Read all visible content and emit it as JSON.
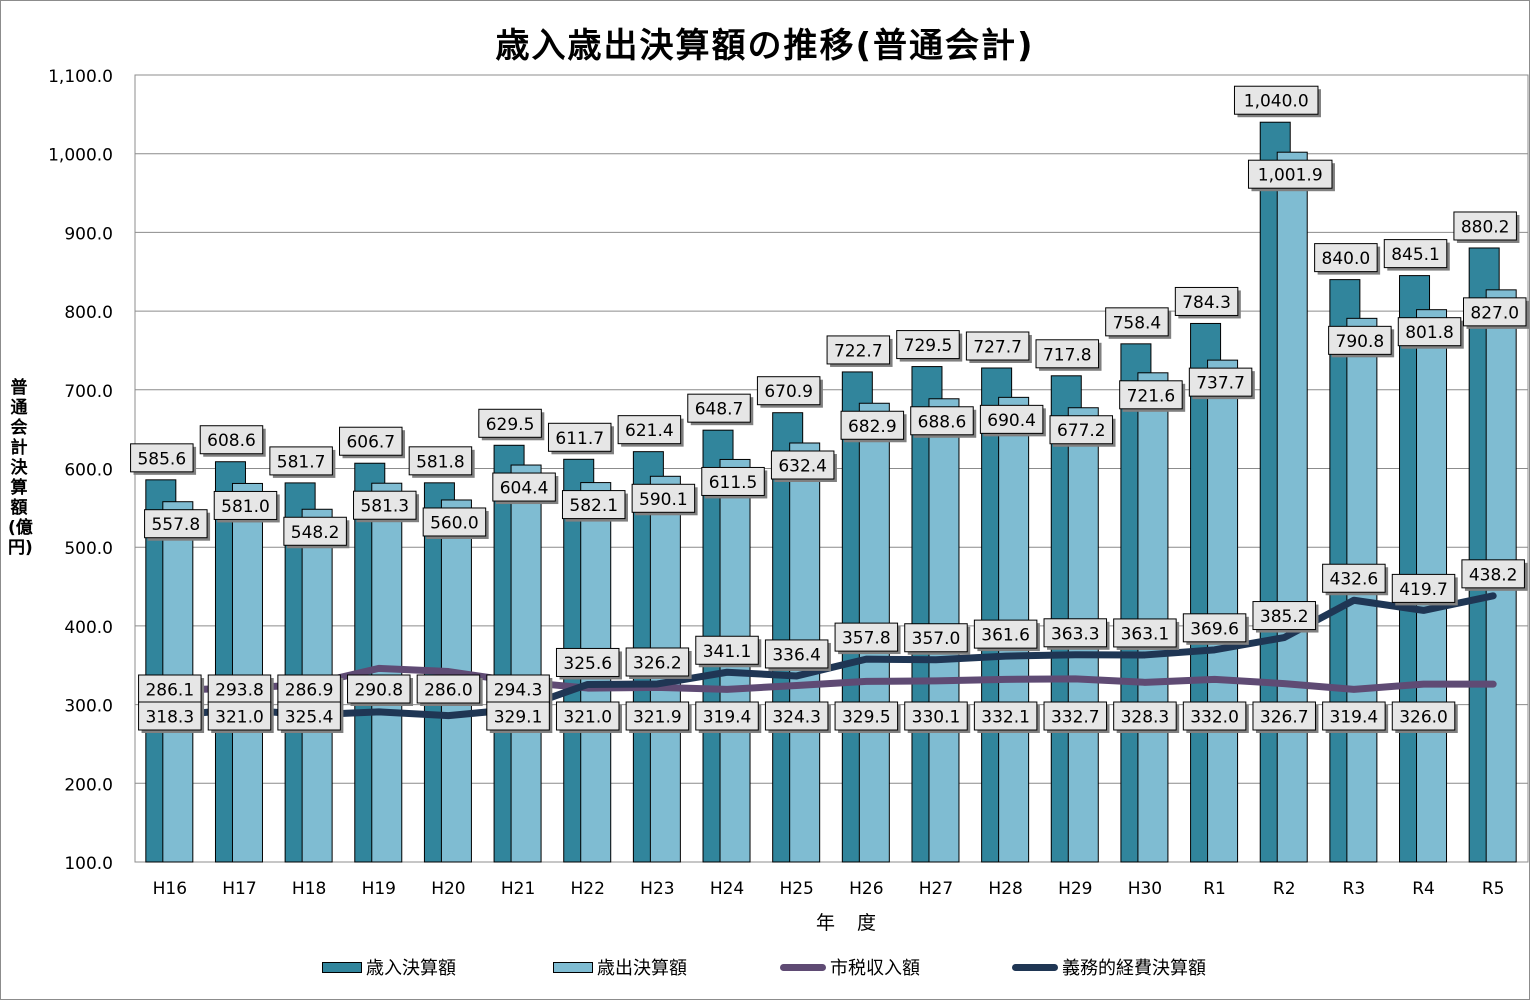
{
  "chart_data": {
    "type": "bar",
    "title": "歳入歳出決算額の推移(普通会計)",
    "xlabel": "年 度",
    "ylabel": "普通会計決算額(億円)",
    "ylim": [
      100,
      1100
    ],
    "yticks": [
      "1,100.0",
      "1,000.0",
      "900.0",
      "800.0",
      "700.0",
      "600.0",
      "500.0",
      "400.0",
      "300.0",
      "200.0",
      "100.0"
    ],
    "ytick_values": [
      1100,
      1000,
      900,
      800,
      700,
      600,
      500,
      400,
      300,
      200,
      100
    ],
    "grid": true,
    "legend_position": "bottom",
    "categories": [
      "H16",
      "H17",
      "H18",
      "H19",
      "H20",
      "H21",
      "H22",
      "H23",
      "H24",
      "H25",
      "H26",
      "H27",
      "H28",
      "H29",
      "H30",
      "R1",
      "R2",
      "R3",
      "R4",
      "R5"
    ],
    "series": [
      {
        "name": "歳入決算額",
        "kind": "bar",
        "color": "#31859c",
        "values": [
          585.6,
          608.6,
          581.7,
          606.7,
          581.8,
          629.5,
          611.7,
          621.4,
          648.7,
          670.9,
          722.7,
          729.5,
          727.7,
          717.8,
          758.4,
          784.3,
          1040.0,
          840.0,
          845.1,
          880.2
        ],
        "labels": [
          "585.6",
          "608.6",
          "581.7",
          "606.7",
          "581.8",
          "629.5",
          "611.7",
          "621.4",
          "648.7",
          "670.9",
          "722.7",
          "729.5",
          "727.7",
          "717.8",
          "758.4",
          "784.3",
          "1,040.0",
          "840.0",
          "845.1",
          "880.2"
        ]
      },
      {
        "name": "歳出決算額",
        "kind": "bar",
        "color": "#7fbcd2",
        "values": [
          557.8,
          581.0,
          548.2,
          581.3,
          560.0,
          604.4,
          582.1,
          590.1,
          611.5,
          632.4,
          682.9,
          688.6,
          690.4,
          677.2,
          721.6,
          737.7,
          1001.9,
          790.8,
          801.8,
          827.0
        ],
        "labels": [
          "557.8",
          "581.0",
          "548.2",
          "581.3",
          "560.0",
          "604.4",
          "582.1",
          "590.1",
          "611.5",
          "632.4",
          "682.9",
          "688.6",
          "690.4",
          "677.2",
          "721.6",
          "737.7",
          "1,001.9",
          "790.8",
          "801.8",
          "827.0"
        ]
      },
      {
        "name": "市税収入額",
        "kind": "line",
        "color": "#5f4b74",
        "values": [
          318.3,
          321.0,
          325.4,
          346.0,
          342.0,
          329.1,
          321.0,
          321.9,
          319.4,
          324.3,
          329.5,
          330.1,
          332.1,
          332.7,
          328.3,
          332.0,
          326.7,
          319.4,
          326.0,
          326.0
        ],
        "labels": [
          "318.3",
          "321.0",
          "325.4",
          "",
          "",
          "329.1",
          "321.0",
          "321.9",
          "319.4",
          "324.3",
          "329.5",
          "330.1",
          "332.1",
          "332.7",
          "328.3",
          "332.0",
          "326.7",
          "319.4",
          "326.0",
          ""
        ]
      },
      {
        "name": "義務的経費決算額",
        "kind": "line",
        "color": "#1f3654",
        "values": [
          286.1,
          293.8,
          286.9,
          290.8,
          286.0,
          294.3,
          325.6,
          326.2,
          341.1,
          336.4,
          357.8,
          357.0,
          361.6,
          363.3,
          363.1,
          369.6,
          385.2,
          432.6,
          419.7,
          438.2
        ],
        "labels": [
          "286.1",
          "293.8",
          "286.9",
          "290.8",
          "286.0",
          "294.3",
          "325.6",
          "326.2",
          "341.1",
          "336.4",
          "357.8",
          "357.0",
          "361.6",
          "363.3",
          "363.1",
          "369.6",
          "385.2",
          "432.6",
          "419.7",
          "438.2"
        ]
      }
    ]
  }
}
